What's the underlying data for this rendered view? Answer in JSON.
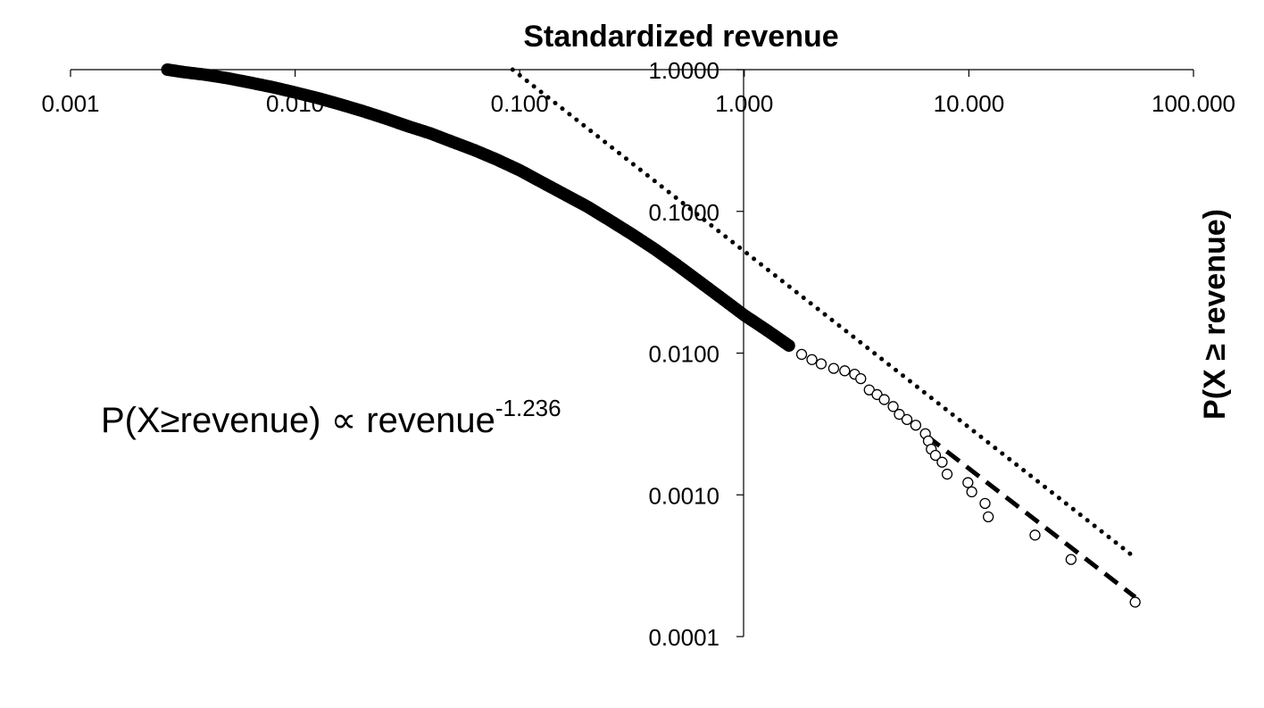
{
  "chart_data": {
    "type": "scatter",
    "title": "Standardized revenue",
    "ylabel": "P(X ≥ revenue)",
    "x_scale": "log",
    "y_scale": "log",
    "xlim": [
      0.001,
      100
    ],
    "ylim": [
      0.0001,
      1
    ],
    "x_ticks": [
      "0.001",
      "0.010",
      "0.100",
      "1.000",
      "10.000",
      "100.000"
    ],
    "y_ticks": [
      "1.0000",
      "0.1000",
      "0.0100",
      "0.0010",
      "0.0001"
    ],
    "x_tick_values": [
      0.001,
      0.01,
      0.1,
      1,
      10,
      100
    ],
    "y_tick_values": [
      1,
      0.1,
      0.01,
      0.001,
      0.0001
    ],
    "grid": false,
    "annotation": {
      "base": "P(X≥revenue) ∝ revenue",
      "exponent": "-1.236"
    },
    "series": [
      {
        "style": "filled-markers",
        "points": [
          [
            0.0027,
            1.0
          ],
          [
            0.0032,
            0.96
          ],
          [
            0.004,
            0.92
          ],
          [
            0.005,
            0.87
          ],
          [
            0.0063,
            0.81
          ],
          [
            0.008,
            0.75
          ],
          [
            0.01,
            0.69
          ],
          [
            0.0126,
            0.63
          ],
          [
            0.0158,
            0.57
          ],
          [
            0.02,
            0.51
          ],
          [
            0.025,
            0.455
          ],
          [
            0.0316,
            0.4
          ],
          [
            0.04,
            0.355
          ],
          [
            0.05,
            0.31
          ],
          [
            0.063,
            0.27
          ],
          [
            0.079,
            0.232
          ],
          [
            0.1,
            0.195
          ],
          [
            0.126,
            0.16
          ],
          [
            0.158,
            0.132
          ],
          [
            0.2,
            0.108
          ],
          [
            0.25,
            0.087
          ],
          [
            0.316,
            0.069
          ],
          [
            0.4,
            0.054
          ],
          [
            0.5,
            0.042
          ],
          [
            0.63,
            0.032
          ],
          [
            0.79,
            0.0245
          ],
          [
            1.0,
            0.0185
          ],
          [
            1.26,
            0.0145
          ],
          [
            1.58,
            0.0113
          ]
        ]
      },
      {
        "style": "open-markers",
        "points": [
          [
            1.8,
            0.0098
          ],
          [
            2.0,
            0.009
          ],
          [
            2.2,
            0.0084
          ],
          [
            2.5,
            0.0078
          ],
          [
            2.8,
            0.0075
          ],
          [
            3.1,
            0.0071
          ],
          [
            3.3,
            0.0066
          ],
          [
            3.6,
            0.0055
          ],
          [
            3.9,
            0.0051
          ],
          [
            4.2,
            0.0047
          ],
          [
            4.6,
            0.0042
          ],
          [
            4.9,
            0.0037
          ],
          [
            5.3,
            0.0034
          ],
          [
            5.8,
            0.0031
          ],
          [
            6.4,
            0.0027
          ],
          [
            6.6,
            0.0024
          ],
          [
            6.8,
            0.0021
          ],
          [
            7.1,
            0.0019
          ],
          [
            7.6,
            0.0017
          ],
          [
            8.0,
            0.0014
          ],
          [
            9.9,
            0.00122
          ],
          [
            10.3,
            0.00105
          ],
          [
            11.8,
            0.00087
          ],
          [
            12.2,
            0.0007
          ],
          [
            19.7,
            0.00052
          ],
          [
            28.5,
            0.00035
          ],
          [
            55.0,
            0.000175
          ]
        ]
      },
      {
        "style": "dotted-line",
        "points": [
          [
            0.093,
            1.0
          ],
          [
            55.0,
            0.00036
          ]
        ]
      },
      {
        "style": "dashed-line",
        "points": [
          [
            6.5,
            0.0026
          ],
          [
            55.0,
            0.00019
          ]
        ]
      }
    ]
  }
}
